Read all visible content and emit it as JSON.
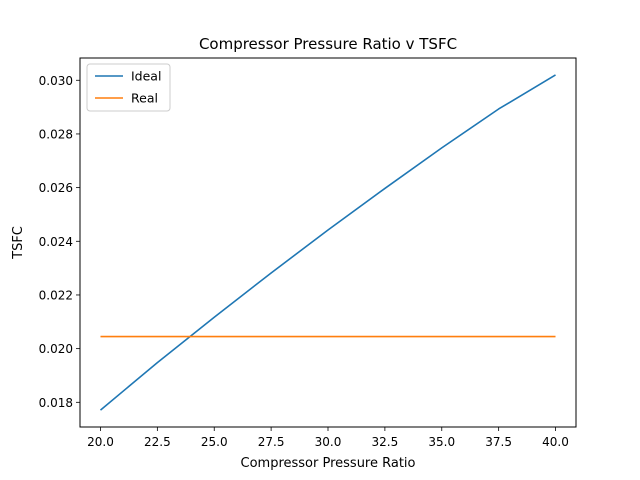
{
  "chart_data": {
    "type": "line",
    "title": "Compressor Pressure Ratio v TSFC",
    "xlabel": "Compressor Pressure Ratio",
    "ylabel": "TSFC",
    "xlim": [
      19.1,
      40.9
    ],
    "ylim": [
      0.01708,
      0.03083
    ],
    "x_ticks": [
      20.0,
      22.5,
      25.0,
      27.5,
      30.0,
      32.5,
      35.0,
      37.5,
      40.0
    ],
    "x_tick_labels": [
      "20.0",
      "22.5",
      "25.0",
      "27.5",
      "30.0",
      "32.5",
      "35.0",
      "37.5",
      "40.0"
    ],
    "y_ticks": [
      0.018,
      0.02,
      0.022,
      0.024,
      0.026,
      0.028,
      0.03
    ],
    "y_tick_labels": [
      "0.018",
      "0.020",
      "0.022",
      "0.024",
      "0.026",
      "0.028",
      "0.030"
    ],
    "grid": false,
    "legend_position": "top-left",
    "series": [
      {
        "name": "Ideal",
        "color": "#1f77b4",
        "x": [
          20,
          22.5,
          25,
          27.5,
          30,
          32.5,
          35,
          37.5,
          40
        ],
        "y": [
          0.01771,
          0.01948,
          0.02117,
          0.02282,
          0.02442,
          0.02597,
          0.02748,
          0.02893,
          0.0302
        ]
      },
      {
        "name": "Real",
        "color": "#ff7f0e",
        "x": [
          20,
          40
        ],
        "y": [
          0.02045,
          0.02045
        ]
      }
    ]
  }
}
